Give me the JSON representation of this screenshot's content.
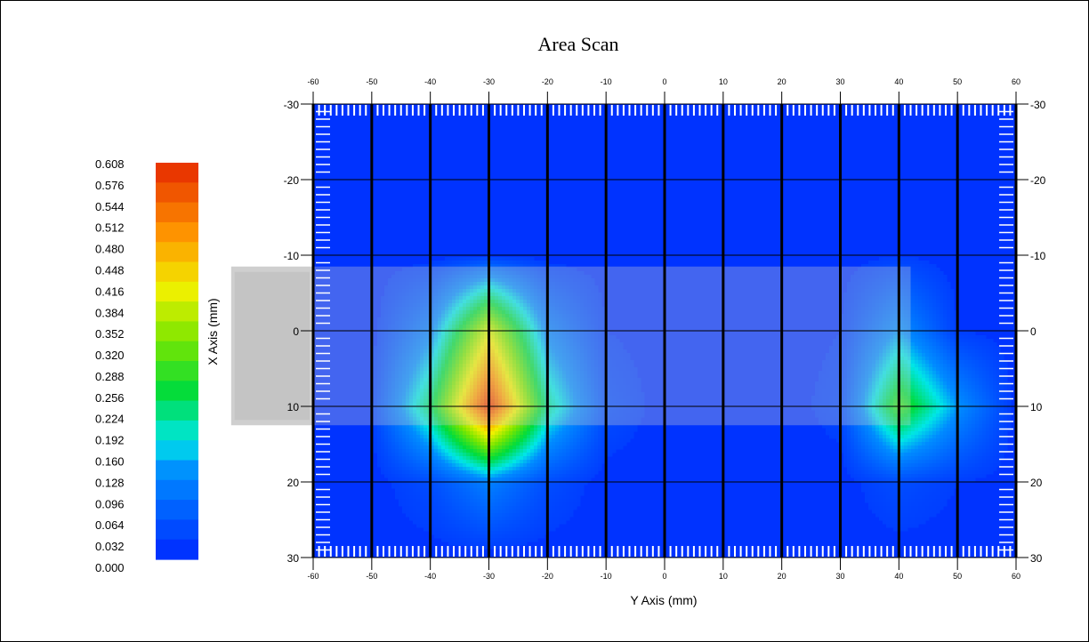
{
  "chart_data": {
    "type": "heatmap",
    "title": "Area Scan",
    "xlabel": "Y Axis (mm)",
    "ylabel": "X Axis (mm)",
    "x_range": [
      -60,
      60
    ],
    "y_range": [
      -30,
      30
    ],
    "y_inverted": true,
    "x_ticks": [
      -60,
      -50,
      -40,
      -30,
      -20,
      -10,
      0,
      10,
      20,
      30,
      40,
      50,
      60
    ],
    "y_ticks": [
      -30,
      -20,
      -10,
      0,
      10,
      20,
      30
    ],
    "grid": true,
    "colorbar": {
      "min": 0.0,
      "max": 0.608,
      "ticks": [
        "0.608",
        "0.576",
        "0.544",
        "0.512",
        "0.480",
        "0.448",
        "0.416",
        "0.384",
        "0.352",
        "0.320",
        "0.288",
        "0.256",
        "0.224",
        "0.192",
        "0.160",
        "0.128",
        "0.096",
        "0.064",
        "0.032",
        "0.000"
      ],
      "placement": "left"
    },
    "x_values": [
      -60,
      -50,
      -40,
      -30,
      -20,
      -10,
      0,
      10,
      20,
      30,
      40,
      50,
      60
    ],
    "y_values": [
      -30,
      -20,
      -10,
      0,
      10,
      20,
      30
    ],
    "z_values": [
      [
        0.02,
        0.02,
        0.02,
        0.02,
        0.02,
        0.02,
        0.02,
        0.02,
        0.02,
        0.02,
        0.02,
        0.02,
        0.02
      ],
      [
        0.02,
        0.02,
        0.02,
        0.02,
        0.02,
        0.02,
        0.02,
        0.02,
        0.02,
        0.02,
        0.02,
        0.02,
        0.02
      ],
      [
        0.02,
        0.02,
        0.02,
        0.03,
        0.02,
        0.02,
        0.02,
        0.02,
        0.02,
        0.02,
        0.03,
        0.02,
        0.02
      ],
      [
        0.02,
        0.02,
        0.12,
        0.4,
        0.12,
        0.03,
        0.02,
        0.02,
        0.02,
        0.03,
        0.14,
        0.03,
        0.02
      ],
      [
        0.02,
        0.03,
        0.24,
        0.6,
        0.22,
        0.05,
        0.02,
        0.02,
        0.02,
        0.04,
        0.3,
        0.14,
        0.02
      ],
      [
        0.02,
        0.02,
        0.05,
        0.12,
        0.05,
        0.02,
        0.02,
        0.02,
        0.02,
        0.02,
        0.05,
        0.03,
        0.02
      ],
      [
        0.02,
        0.02,
        0.02,
        0.02,
        0.02,
        0.02,
        0.02,
        0.02,
        0.02,
        0.02,
        0.02,
        0.02,
        0.02
      ]
    ],
    "overlay": {
      "description_visible": false,
      "color": "#d0d0d0",
      "x_range": [
        -74,
        42
      ],
      "y_range": [
        -8.5,
        12.5
      ]
    },
    "colors": {
      "background": "#0033ff",
      "grid": "#000000"
    }
  }
}
